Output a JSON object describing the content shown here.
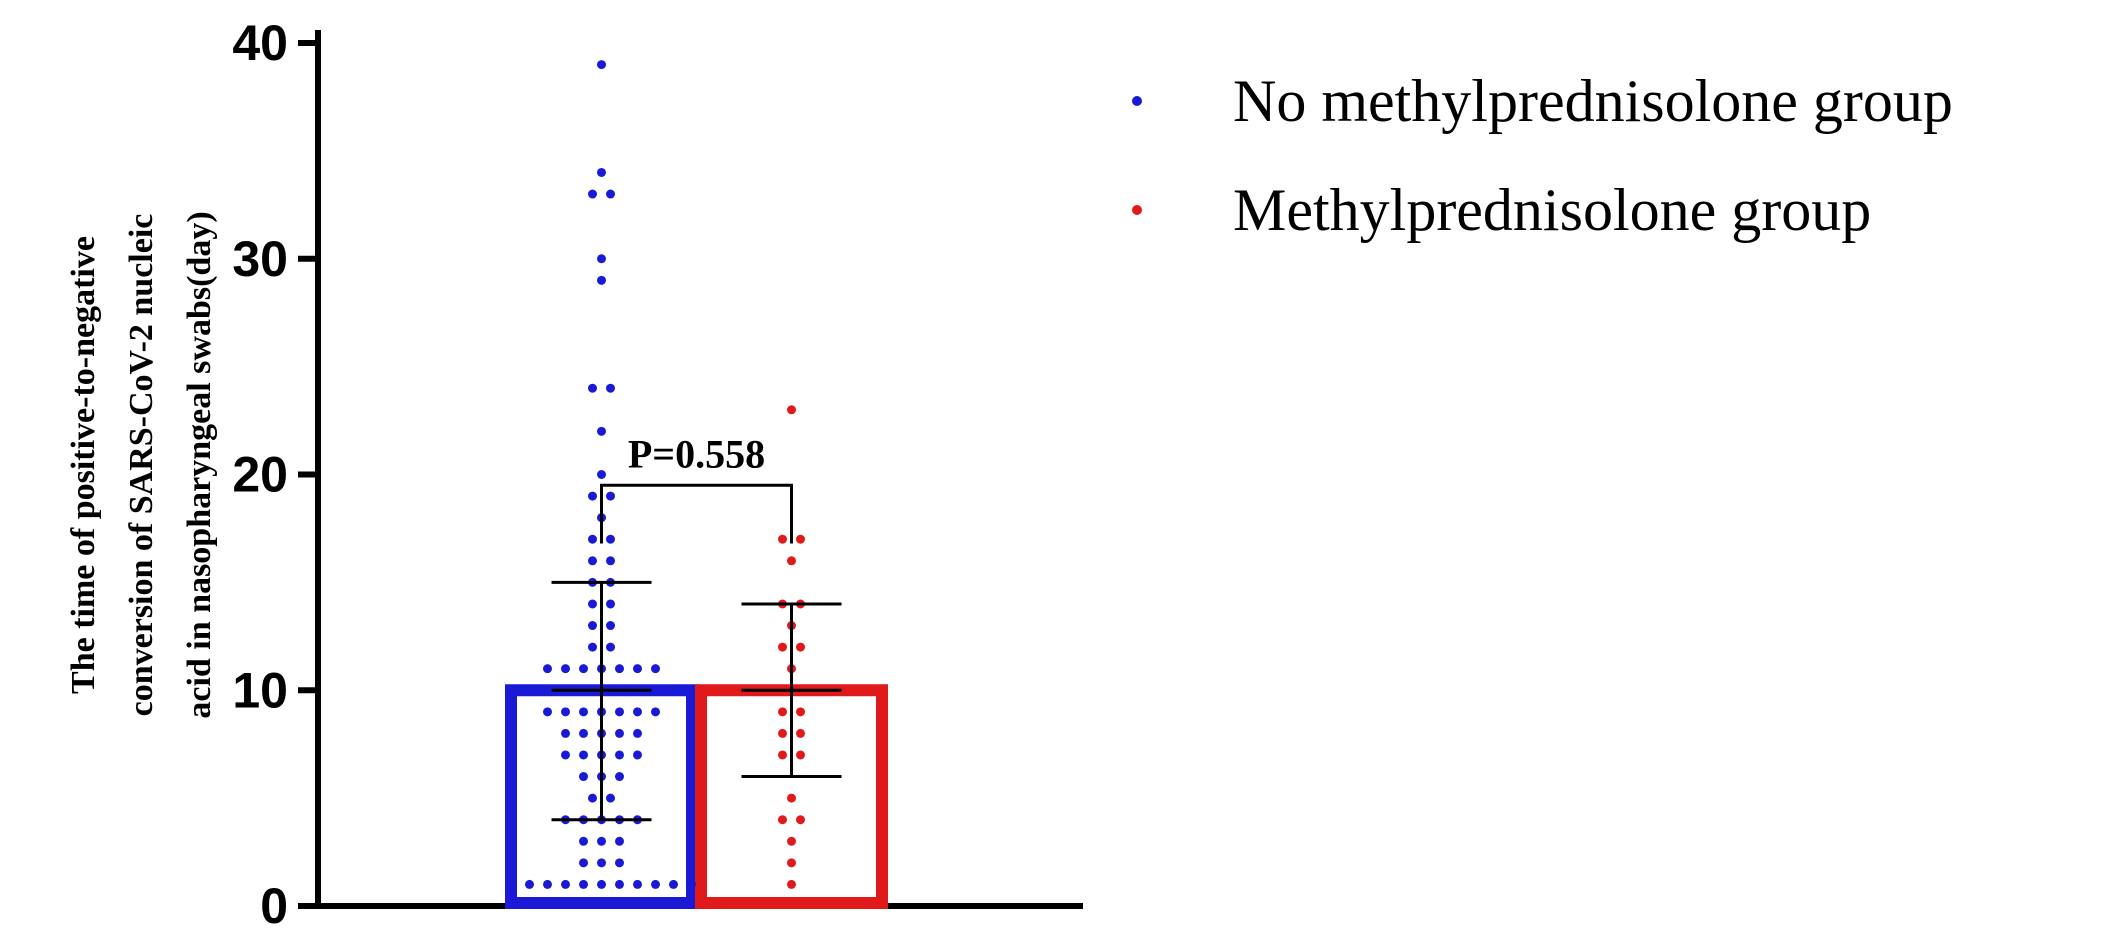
{
  "chart_data": {
    "type": "bar",
    "ylabel_lines": [
      "The time of positive-to-negative",
      "conversion of SARS-CoV-2 nucleic",
      "acid in nasopharyngeal swabs(day)"
    ],
    "ylim": [
      0,
      40
    ],
    "yticks": [
      0,
      10,
      20,
      30,
      40
    ],
    "yticks_labels": [
      "0",
      "10",
      "20",
      "30",
      "40"
    ],
    "legend_position": "top-right",
    "grid": false,
    "series": [
      {
        "name": "No methylprednisolone group",
        "color": "#1a1ad6",
        "mean": 10,
        "sd_low": 4,
        "sd_high": 15,
        "points": [
          1,
          1,
          1,
          1,
          1,
          1,
          1,
          1,
          1,
          1,
          1,
          2,
          2,
          2,
          3,
          3,
          3,
          4,
          4,
          4,
          4,
          4,
          5,
          5,
          6,
          6,
          6,
          7,
          7,
          7,
          7,
          7,
          8,
          8,
          8,
          8,
          8,
          9,
          9,
          9,
          9,
          9,
          9,
          9,
          10,
          10,
          10,
          10,
          10,
          10,
          10,
          11,
          11,
          11,
          11,
          11,
          11,
          11,
          12,
          12,
          13,
          13,
          14,
          14,
          15,
          15,
          16,
          16,
          17,
          17,
          18,
          19,
          19,
          20,
          22,
          24,
          24,
          29,
          30,
          33,
          33,
          34,
          39
        ]
      },
      {
        "name": "Methylprednisolone group",
        "color": "#e01a1a",
        "mean": 10,
        "sd_low": 6,
        "sd_high": 14,
        "points": [
          1,
          2,
          3,
          4,
          4,
          5,
          7,
          7,
          8,
          8,
          9,
          9,
          10,
          10,
          11,
          12,
          12,
          13,
          14,
          14,
          16,
          17,
          17,
          23
        ]
      }
    ],
    "annotation": "P=0.558"
  }
}
